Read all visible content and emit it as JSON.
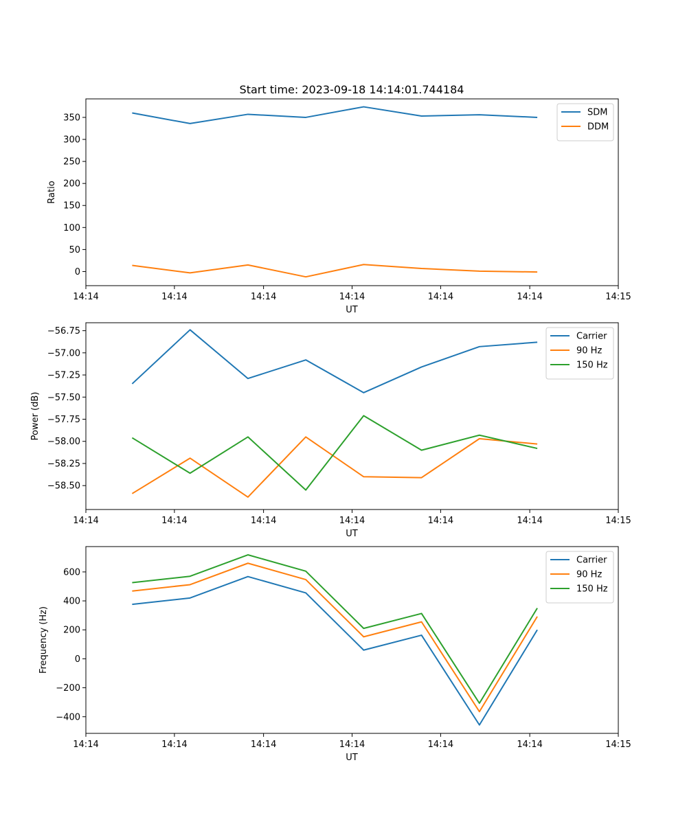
{
  "figure": {
    "title": "Start time: 2023-09-18 14:14:01.744184"
  },
  "chart_data": [
    {
      "type": "line",
      "title": "Start time: 2023-09-18 14:14:01.744184",
      "xlabel": "UT",
      "ylabel": "Ratio",
      "xlim": [
        0,
        9.2
      ],
      "ylim": [
        -32,
        392
      ],
      "x": [
        0.8,
        1.8,
        2.8,
        3.8,
        4.8,
        5.8,
        6.8,
        7.8
      ],
      "xticks": [
        0,
        1.53,
        3.07,
        4.6,
        6.13,
        7.67,
        9.2
      ],
      "xticklabels": [
        "14:14",
        "14:14",
        "14:14",
        "14:14",
        "14:14",
        "14:14",
        "14:15"
      ],
      "yticks": [
        0,
        50,
        100,
        150,
        200,
        250,
        300,
        350
      ],
      "yticklabels": [
        "0",
        "50",
        "100",
        "150",
        "200",
        "250",
        "300",
        "350"
      ],
      "legend": "top-right",
      "series": [
        {
          "name": "SDM",
          "color": "#1f77b4",
          "values": [
            360,
            336,
            357,
            350,
            374,
            353,
            356,
            350
          ]
        },
        {
          "name": "DDM",
          "color": "#ff7f0e",
          "values": [
            14,
            -3,
            15,
            -12,
            16,
            7,
            1,
            -1
          ]
        }
      ]
    },
    {
      "type": "line",
      "title": "",
      "xlabel": "UT",
      "ylabel": "Power (dB)",
      "xlim": [
        0,
        9.2
      ],
      "ylim": [
        -58.77,
        -56.66
      ],
      "x": [
        0.8,
        1.8,
        2.8,
        3.8,
        4.8,
        5.8,
        6.8,
        7.8
      ],
      "xticks": [
        0,
        1.53,
        3.07,
        4.6,
        6.13,
        7.67,
        9.2
      ],
      "xticklabels": [
        "14:14",
        "14:14",
        "14:14",
        "14:14",
        "14:14",
        "14:14",
        "14:15"
      ],
      "yticks": [
        -58.5,
        -58.25,
        -58.0,
        -57.75,
        -57.5,
        -57.25,
        -57.0,
        -56.75
      ],
      "yticklabels": [
        "−58.50",
        "−58.25",
        "−58.00",
        "−57.75",
        "−57.50",
        "−57.25",
        "−57.00",
        "−56.75"
      ],
      "legend": "top-right",
      "series": [
        {
          "name": "Carrier",
          "color": "#1f77b4",
          "values": [
            -57.35,
            -56.74,
            -57.29,
            -57.08,
            -57.45,
            -57.16,
            -56.93,
            -56.88
          ]
        },
        {
          "name": "90 Hz",
          "color": "#ff7f0e",
          "values": [
            -58.59,
            -58.19,
            -58.63,
            -57.95,
            -58.4,
            -58.41,
            -57.97,
            -58.03
          ]
        },
        {
          "name": "150 Hz",
          "color": "#2ca02c",
          "values": [
            -57.96,
            -58.36,
            -57.95,
            -58.55,
            -57.71,
            -58.1,
            -57.93,
            -58.08
          ]
        }
      ]
    },
    {
      "type": "line",
      "title": "",
      "xlabel": "UT",
      "ylabel": "Frequency (Hz)",
      "xlim": [
        0,
        9.2
      ],
      "ylim": [
        -515,
        775
      ],
      "x": [
        0.8,
        1.8,
        2.8,
        3.8,
        4.8,
        5.8,
        6.8,
        7.8
      ],
      "xticks": [
        0,
        1.53,
        3.07,
        4.6,
        6.13,
        7.67,
        9.2
      ],
      "xticklabels": [
        "14:14",
        "14:14",
        "14:14",
        "14:14",
        "14:14",
        "14:14",
        "14:15"
      ],
      "yticks": [
        -400,
        -200,
        0,
        200,
        400,
        600
      ],
      "yticklabels": [
        "−400",
        "−200",
        "0",
        "200",
        "400",
        "600"
      ],
      "legend": "top-right",
      "series": [
        {
          "name": "Carrier",
          "color": "#1f77b4",
          "values": [
            376,
            420,
            568,
            455,
            60,
            163,
            -457,
            200
          ]
        },
        {
          "name": "90 Hz",
          "color": "#ff7f0e",
          "values": [
            468,
            512,
            660,
            547,
            152,
            255,
            -365,
            292
          ]
        },
        {
          "name": "150 Hz",
          "color": "#2ca02c",
          "values": [
            526,
            570,
            718,
            605,
            210,
            313,
            -307,
            350
          ]
        }
      ]
    }
  ]
}
